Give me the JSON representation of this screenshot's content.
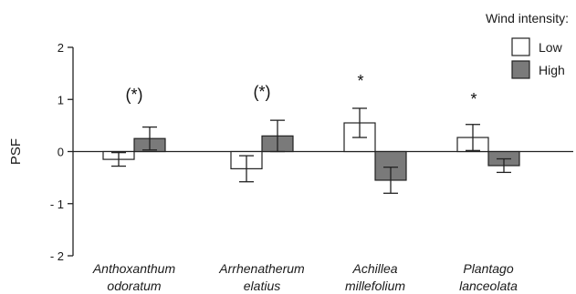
{
  "chart_data": {
    "type": "bar",
    "title": "",
    "xlabel": "",
    "ylabel": "PSF",
    "ylim": [
      -2,
      2
    ],
    "yticks": [
      2,
      1,
      0,
      -1,
      -2
    ],
    "grid": false,
    "legend_position": "top-right",
    "legend_title": "Wind intensity:",
    "categories": [
      [
        "Anthoxanthum",
        "odoratum"
      ],
      [
        "Arrhenatherum",
        "elatius"
      ],
      [
        "Achillea",
        "millefolium"
      ],
      [
        "Plantago",
        "lanceolata"
      ]
    ],
    "series": [
      {
        "name": "Low",
        "color": "#ffffff",
        "values": [
          -0.15,
          -0.33,
          0.55,
          0.27
        ],
        "error": [
          0.13,
          0.25,
          0.28,
          0.25
        ]
      },
      {
        "name": "High",
        "color": "#7a7a7a",
        "values": [
          0.25,
          0.3,
          -0.55,
          -0.27
        ],
        "error": [
          0.22,
          0.3,
          0.25,
          0.13
        ]
      }
    ],
    "significance": [
      "(*)",
      "(*)",
      "*",
      "*"
    ]
  }
}
